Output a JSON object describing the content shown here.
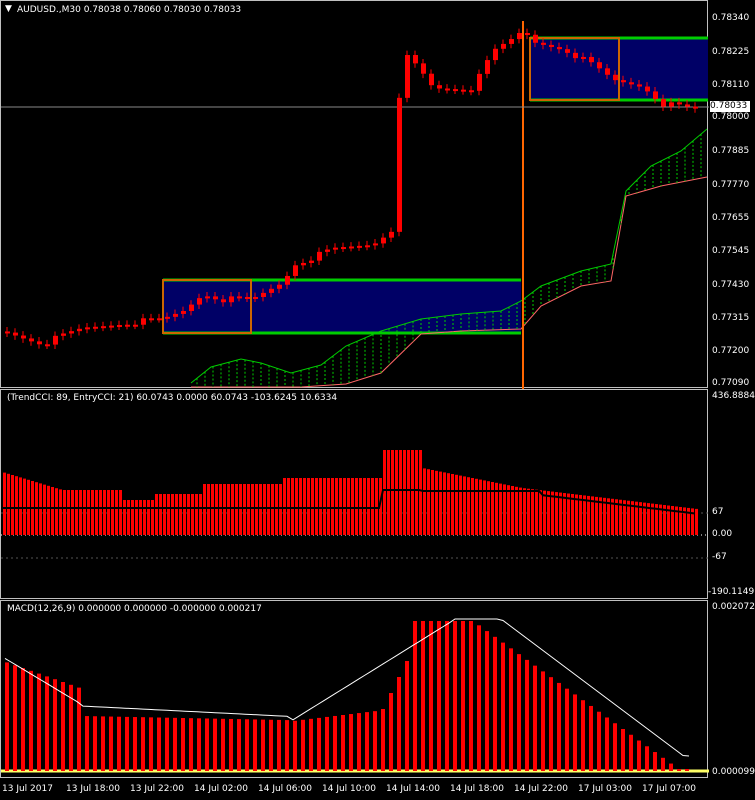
{
  "main": {
    "title_arrow": "▼",
    "title": "AUDUSD.,M30  0.78038 0.78060 0.78030 0.78033",
    "price_scale": [
      "0.78340",
      "0.78225",
      "0.78110",
      "0.78000",
      "0.77885",
      "0.77770",
      "0.77655",
      "0.77545",
      "0.77430",
      "0.77315",
      "0.77200",
      "0.77090"
    ],
    "current_price": "0.78033"
  },
  "cci": {
    "title": "(TrendCCI: 89, EntryCCI: 21)  60.0743 0.0000 60.0743 -103.6245 10.6334",
    "scale": [
      "436.8884",
      "67",
      "0.00",
      "-67",
      "-190.1149"
    ]
  },
  "macd": {
    "title": "MACD(12,26,9) 0.000000 0.000000 -0.000000 0.000217",
    "scale": [
      "0.002072",
      "0.000099"
    ]
  },
  "time_axis": [
    "13 Jul 2017",
    "13 Jul 18:00",
    "13 Jul 22:00",
    "14 Jul 02:00",
    "14 Jul 06:00",
    "14 Jul 10:00",
    "14 Jul 14:00",
    "14 Jul 18:00",
    "14 Jul 22:00",
    "17 Jul 03:00",
    "17 Jul 07:00"
  ],
  "colors": {
    "candle": "#ff0000",
    "box_fill": "#000066",
    "box_edge": "#00cc00",
    "box_outline": "#cc6600",
    "cloud": "#00cc00",
    "indicator_line": "#ffffff"
  }
}
